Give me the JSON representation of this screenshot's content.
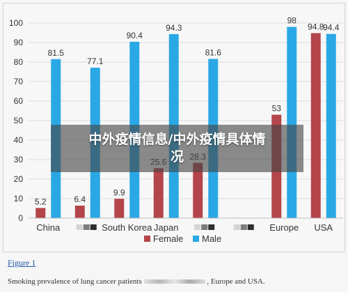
{
  "chart_data": {
    "type": "bar",
    "categories": [
      "China",
      "",
      "South Korea",
      "Japan",
      "",
      "",
      "Europe",
      "USA"
    ],
    "series": [
      {
        "name": "Female",
        "values": [
          5.2,
          6.4,
          9.9,
          25.6,
          28.3,
          null,
          53,
          94.8
        ],
        "labels": [
          "5.2",
          "6.4",
          "9.9",
          "25.6",
          "28.3",
          "",
          "53",
          "94.8"
        ],
        "color": "#b4454a"
      },
      {
        "name": "Male",
        "values": [
          81.5,
          77.1,
          90.4,
          94.3,
          81.6,
          null,
          98,
          94.4
        ],
        "labels": [
          "81.5",
          "77.1",
          "90.4",
          "94.3",
          "81.6",
          "",
          "98",
          "94.4"
        ],
        "color": "#2aa8e5"
      }
    ],
    "yticks": [
      "0",
      "10",
      "20",
      "30",
      "40",
      "50",
      "60",
      "70",
      "80",
      "90",
      "100"
    ],
    "ylim": [
      0,
      100
    ],
    "grid": "horizontal",
    "legend_position": "bottom-center"
  },
  "overlay": {
    "line1": "中外疫情信息/中外疫情具体情",
    "line2": "况"
  },
  "caption": {
    "figure_label": "Figure 1",
    "text_before": "Smoking prevalence of lung cancer patients",
    "text_after": ", Europe and USA."
  },
  "colors": {
    "female": "#b4454a",
    "male": "#2aa8e5",
    "grid": "#dcdcdc",
    "axis_text": "#333333"
  }
}
